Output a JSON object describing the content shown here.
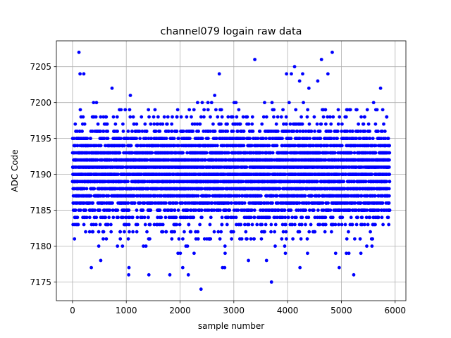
{
  "chart_data": {
    "type": "scatter",
    "title": "channel079 logain raw data",
    "xlabel": "sample number",
    "ylabel": "ADC Code",
    "xlim": [
      -300,
      6200
    ],
    "ylim": [
      7172.4,
      7208.6
    ],
    "xticks": [
      0,
      1000,
      2000,
      3000,
      4000,
      5000,
      6000
    ],
    "yticks": [
      7175,
      7180,
      7185,
      7190,
      7195,
      7200,
      7205
    ],
    "xtick_labels": [
      "0",
      "1000",
      "2000",
      "3000",
      "4000",
      "5000",
      "6000"
    ],
    "ytick_labels": [
      "7175",
      "7180",
      "7185",
      "7190",
      "7195",
      "7200",
      "7205"
    ],
    "grid": true,
    "marker_color": "#0000ff",
    "series": [
      {
        "n_samples": 5900,
        "code_range": [
          7174,
          7207
        ],
        "core_range": [
          7183,
          7196
        ],
        "outliers": [
          {
            "x": 120,
            "y": 7207
          },
          {
            "x": 4830,
            "y": 7207
          },
          {
            "x": 3390,
            "y": 7206
          },
          {
            "x": 4630,
            "y": 7206
          },
          {
            "x": 4130,
            "y": 7205
          },
          {
            "x": 140,
            "y": 7204
          },
          {
            "x": 210,
            "y": 7204
          },
          {
            "x": 2730,
            "y": 7204
          },
          {
            "x": 3980,
            "y": 7204
          },
          {
            "x": 4070,
            "y": 7204
          },
          {
            "x": 4280,
            "y": 7204
          },
          {
            "x": 4750,
            "y": 7204
          },
          {
            "x": 2390,
            "y": 7174
          },
          {
            "x": 3700,
            "y": 7175
          },
          {
            "x": 1420,
            "y": 7176
          },
          {
            "x": 1810,
            "y": 7176
          },
          {
            "x": 5230,
            "y": 7176
          },
          {
            "x": 1050,
            "y": 7177
          },
          {
            "x": 2050,
            "y": 7177
          },
          {
            "x": 2790,
            "y": 7177
          },
          {
            "x": 2830,
            "y": 7177
          },
          {
            "x": 4230,
            "y": 7177
          },
          {
            "x": 4960,
            "y": 7177
          }
        ]
      }
    ]
  }
}
